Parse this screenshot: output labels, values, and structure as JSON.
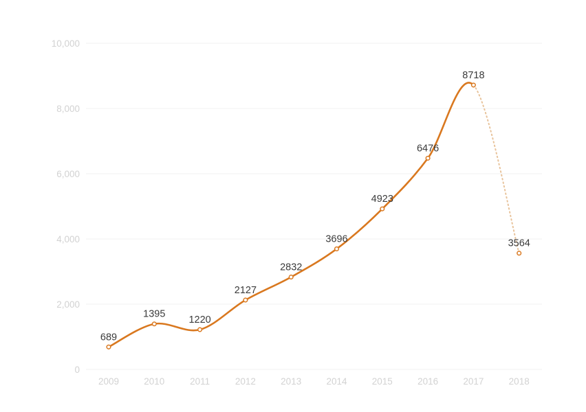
{
  "chart_data": {
    "type": "line",
    "title": "",
    "xlabel": "",
    "ylabel": "",
    "x": [
      "2009",
      "2010",
      "2011",
      "2012",
      "2013",
      "2014",
      "2015",
      "2016",
      "2017",
      "2018"
    ],
    "values": [
      689,
      1395,
      1220,
      2127,
      2832,
      3696,
      4923,
      6476,
      8718,
      3564
    ],
    "data_labels": [
      "689",
      "1395",
      "1220",
      "2127",
      "2832",
      "3696",
      "4923",
      "6476",
      "8718",
      "3564"
    ],
    "y_ticks": [
      0,
      2000,
      4000,
      6000,
      8000,
      10000
    ],
    "y_tick_labels": [
      "0",
      "2,000",
      "4,000",
      "6,000",
      "8,000",
      "10,000"
    ],
    "ylim": [
      0,
      10000
    ],
    "grid": true,
    "legend": "none",
    "last_segment_style": "dotted",
    "colors": {
      "line": "#d9781f",
      "dotted_segment": "#e8c39b",
      "marker_fill": "#ffffff",
      "tick_text": "#d2d2d2",
      "label_text": "#3a3a3a",
      "grid": "#f2f2f2"
    }
  }
}
